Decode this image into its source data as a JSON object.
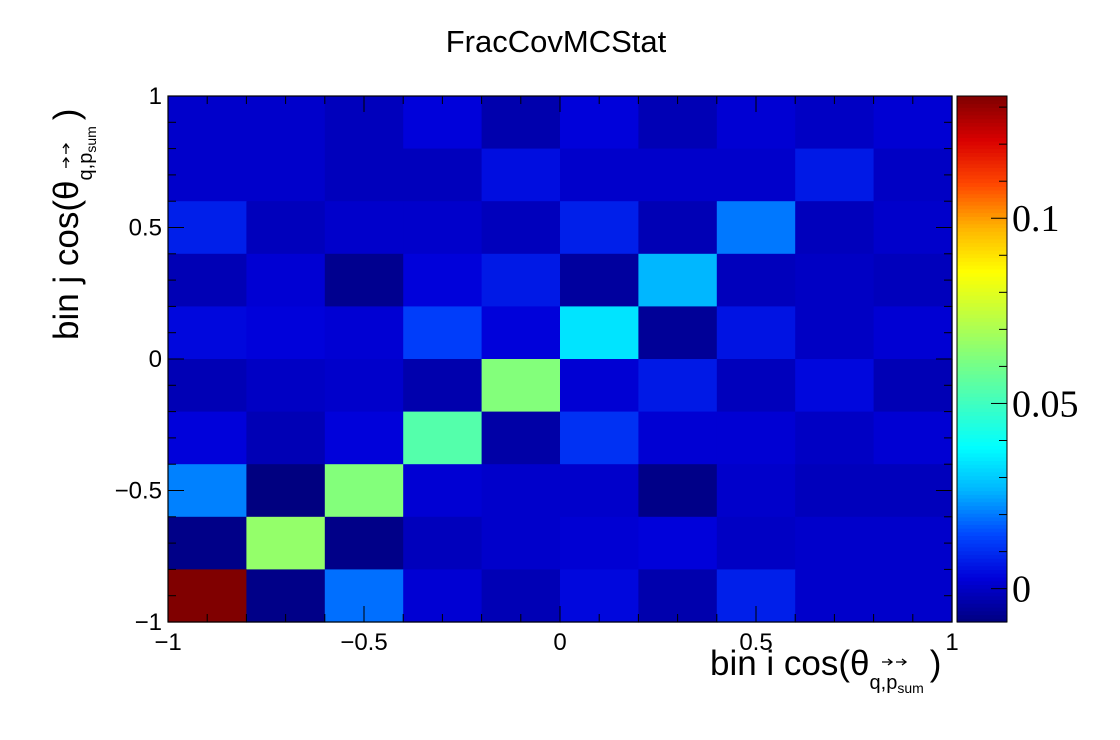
{
  "chart_data": {
    "type": "heatmap",
    "title": "FracCovMCStat",
    "xlabel": "bin i cos(θ",
    "ylabel": "bin j cos(θ",
    "label_sub_base": "q,p",
    "label_sub_sub": "sum",
    "label_close": ")",
    "xlim": [
      -1,
      1
    ],
    "ylim": [
      -1,
      1
    ],
    "x_ticks": [
      {
        "value": -1,
        "label": "−1"
      },
      {
        "value": -0.5,
        "label": "−0.5"
      },
      {
        "value": 0,
        "label": "0"
      },
      {
        "value": 0.5,
        "label": "0.5"
      },
      {
        "value": 1,
        "label": "1"
      }
    ],
    "y_ticks": [
      {
        "value": -1,
        "label": "−1"
      },
      {
        "value": -0.5,
        "label": "−0.5"
      },
      {
        "value": 0,
        "label": "0"
      },
      {
        "value": 0.5,
        "label": "0.5"
      },
      {
        "value": 1,
        "label": "1"
      }
    ],
    "nbins": 10,
    "zlim": [
      -0.009,
      0.133
    ],
    "z_ticks": [
      {
        "value": 0,
        "label": "0"
      },
      {
        "value": 0.05,
        "label": "0.05"
      },
      {
        "value": 0.1,
        "label": "0.1"
      }
    ],
    "grid": false,
    "colormap": [
      "#000080",
      "#0000d9",
      "#0047ff",
      "#00b4ff",
      "#00ffff",
      "#40ffc0",
      "#7dff80",
      "#c0ff40",
      "#ffff00",
      "#ffb400",
      "#ff4700",
      "#d90000",
      "#800000"
    ],
    "z_rows_top_to_bottom": [
      [
        0.001,
        0.001,
        -0.001,
        0.003,
        -0.003,
        0.003,
        -0.002,
        0.002,
        0.0,
        0.002
      ],
      [
        0.001,
        0.001,
        -0.001,
        -0.001,
        0.005,
        0.001,
        0.001,
        0.001,
        0.007,
        0.0
      ],
      [
        0.008,
        -0.001,
        0.001,
        0.001,
        -0.001,
        0.008,
        -0.002,
        0.02,
        -0.001,
        0.001
      ],
      [
        -0.002,
        0.002,
        -0.007,
        0.003,
        0.007,
        -0.005,
        0.027,
        -0.001,
        0.0,
        -0.001
      ],
      [
        0.004,
        0.003,
        0.002,
        0.013,
        0.003,
        0.034,
        -0.006,
        0.006,
        0.0,
        0.002
      ],
      [
        -0.002,
        0.0,
        0.001,
        -0.003,
        0.063,
        0.002,
        0.007,
        -0.001,
        0.004,
        -0.002
      ],
      [
        0.003,
        -0.002,
        0.003,
        0.054,
        -0.004,
        0.011,
        0.002,
        0.002,
        0.0,
        0.002
      ],
      [
        0.021,
        -0.009,
        0.063,
        0.002,
        0.001,
        0.001,
        -0.008,
        0.001,
        -0.001,
        -0.001
      ],
      [
        -0.008,
        0.066,
        -0.008,
        -0.001,
        0.001,
        0.002,
        0.003,
        0.0,
        0.001,
        0.001
      ],
      [
        0.133,
        -0.008,
        0.019,
        0.002,
        -0.002,
        0.004,
        -0.003,
        0.008,
        0.001,
        0.001
      ]
    ]
  }
}
